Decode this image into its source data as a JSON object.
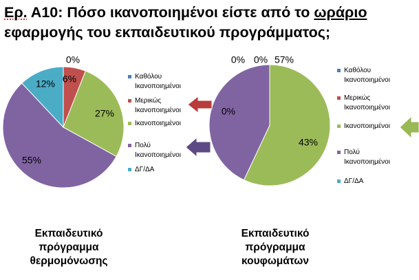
{
  "title": {
    "prefix": "Ερ.",
    "middle": " Α10: Πόσο ικανοποιημένοι είστε από το ",
    "underlined": "ωράριο",
    "line2": "εφαρμογής του εκπαιδευτικού προγράμματος;"
  },
  "colors": {
    "katholou": "#4a7ebb",
    "merikos": "#c0504d",
    "ikanopoiimenoi": "#9bbb59",
    "poly": "#8064a2",
    "dg_da": "#4bacc6",
    "arrow_red": "#b93b3b",
    "arrow_purple": "#5c4a85",
    "arrow_green": "#98b954"
  },
  "legend": {
    "items": [
      {
        "key": "katholou",
        "line1": "Καθόλου",
        "line2": "Ικανοποιημένοι"
      },
      {
        "key": "merikos",
        "line1": "Μερικώς",
        "line2": "Ικανοποιημένοι"
      },
      {
        "key": "ikanopoiimenoi",
        "line1": "Ικανοποιημένοι",
        "line2": ""
      },
      {
        "key": "poly",
        "line1": "Πολύ",
        "line2": "Ικανοποιημένοι"
      },
      {
        "key": "dg_da",
        "line1": "ΔΓ/ΔΑ",
        "line2": ""
      }
    ]
  },
  "chart_data": [
    {
      "type": "pie",
      "title": "Εκπαιδευτικό πρόγραμμα θερμομόνωσης",
      "title_lines": [
        "Εκπαιδευτικό",
        "πρόγραμμα",
        "θερμομόνωσης"
      ],
      "categories": [
        "Καθόλου Ικανοποιημένοι",
        "Μερικώς Ικανοποιημένοι",
        "Ικανοποιημένοι",
        "Πολύ Ικανοποιημένοι",
        "ΔΓ/ΔΑ"
      ],
      "values": [
        0,
        6,
        27,
        55,
        12
      ],
      "labels": [
        "0%",
        "6%",
        "27%",
        "55%",
        "12%"
      ],
      "legend": "right"
    },
    {
      "type": "pie",
      "title": "Εκπαιδευτικό πρόγραμμα κουφωμάτων",
      "title_lines": [
        "Εκπαιδευτικό",
        "πρόγραμμα",
        "κουφωμάτων"
      ],
      "categories": [
        "Καθόλου Ικανοποιημένοι",
        "Μερικώς Ικανοποιημένοι",
        "Ικανοποιημένοι",
        "Πολύ Ικανοποιημένοι",
        "ΔΓ/ΔΑ"
      ],
      "values": [
        0,
        0,
        57,
        43,
        0
      ],
      "labels": [
        "0%",
        "0%",
        "57%",
        "43%",
        "0%"
      ],
      "legend": "right"
    }
  ]
}
